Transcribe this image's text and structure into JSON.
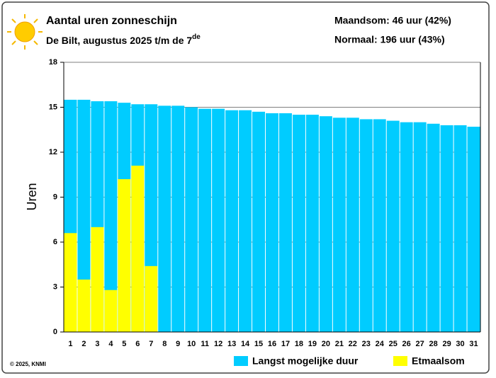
{
  "chart_data": {
    "type": "bar",
    "title": "Aantal uren zonneschijn",
    "subtitle": "De Bilt, augustus 2025 t/m de 7",
    "subtitle_superscript": "de",
    "annotations": [
      "Maandsom: 46 uur (42%)",
      "Normaal: 196 uur (43%)"
    ],
    "y_label": "Uren",
    "footer": "© 2025, KNMI",
    "categories": [
      "1",
      "2",
      "3",
      "4",
      "5",
      "6",
      "7",
      "8",
      "9",
      "10",
      "11",
      "12",
      "13",
      "14",
      "15",
      "16",
      "17",
      "18",
      "19",
      "20",
      "21",
      "22",
      "23",
      "24",
      "25",
      "26",
      "27",
      "28",
      "29",
      "30",
      "31"
    ],
    "series": [
      {
        "name": "Langst mogelijke duur",
        "color": "#00ccff",
        "values": [
          15.5,
          15.5,
          15.4,
          15.4,
          15.3,
          15.2,
          15.2,
          15.1,
          15.1,
          15.0,
          14.9,
          14.9,
          14.8,
          14.8,
          14.7,
          14.6,
          14.6,
          14.5,
          14.5,
          14.4,
          14.3,
          14.3,
          14.2,
          14.2,
          14.1,
          14.0,
          14.0,
          13.9,
          13.8,
          13.8,
          13.7
        ]
      },
      {
        "name": "Etmaalsom",
        "color": "#ffff00",
        "values": [
          6.6,
          3.5,
          7.0,
          2.8,
          10.2,
          11.1,
          4.4,
          null,
          null,
          null,
          null,
          null,
          null,
          null,
          null,
          null,
          null,
          null,
          null,
          null,
          null,
          null,
          null,
          null,
          null,
          null,
          null,
          null,
          null,
          null,
          null
        ]
      }
    ],
    "ylim": [
      0,
      18
    ],
    "yticks": [
      0,
      3,
      6,
      9,
      12,
      15,
      18
    ],
    "grid": true,
    "legend": "bottom"
  }
}
